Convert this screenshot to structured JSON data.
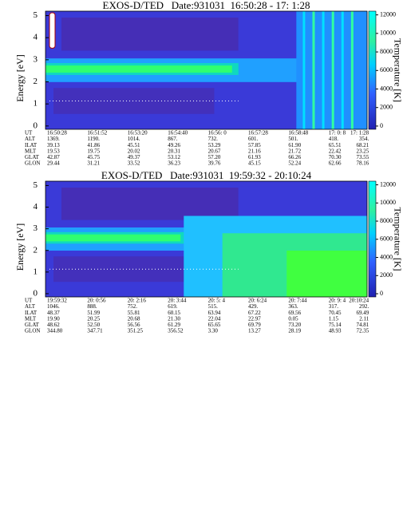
{
  "chart_data": [
    {
      "type": "contour",
      "title": "EXOS-D/TED   Date:931031  16:50:28 - 17: 1:28",
      "ylabel": "Energy [eV]",
      "ylim": [
        -0.15,
        5.2
      ],
      "yticks": [
        0,
        1,
        2,
        3,
        4,
        5
      ],
      "colorbar_label": "Temperature [K]",
      "clim": [
        -350,
        12400
      ],
      "cticks": [
        0,
        2000,
        4000,
        6000,
        8000,
        10000,
        12000
      ],
      "table": [
        {
          "name": "UT",
          "values": [
            "16:50:28",
            "16:51:52",
            "16:53:20",
            "16:54:40",
            "16:56: 0",
            "16:57:28",
            "16:58:48",
            "17: 0: 8",
            "17: 1:28"
          ]
        },
        {
          "name": "ALT",
          "values": [
            "1369.",
            "1190.",
            "1014.",
            "867.",
            "732.",
            "601.",
            "501.",
            "418.",
            "354."
          ]
        },
        {
          "name": "ILAT",
          "values": [
            "39.13",
            "41.86",
            "45.51",
            "49.26",
            "53.29",
            "57.85",
            "61.90",
            "65.51",
            "68.21"
          ]
        },
        {
          "name": "MLT",
          "values": [
            "19.53",
            "19.75",
            "20.02",
            "20.31",
            "20.67",
            "21.16",
            "21.72",
            "22.42",
            "23.25"
          ]
        },
        {
          "name": "GLAT",
          "values": [
            "42.87",
            "45.75",
            "49.37",
            "53.12",
            "57.20",
            "61.93",
            "66.26",
            "70.30",
            "73.55"
          ]
        },
        {
          "name": "GLON",
          "values": [
            "29.44",
            "31.21",
            "33.52",
            "36.23",
            "39.76",
            "45.15",
            "52.24",
            "62.66",
            "78.16"
          ]
        }
      ]
    },
    {
      "type": "contour",
      "title": "EXOS-D/TED   Date:931031  19:59:32 - 20:10:24",
      "ylabel": "Energy [eV]",
      "ylim": [
        -0.15,
        5.2
      ],
      "yticks": [
        0,
        1,
        2,
        3,
        4,
        5
      ],
      "colorbar_label": "Temperature [K]",
      "clim": [
        -350,
        12400
      ],
      "cticks": [
        0,
        2000,
        4000,
        6000,
        8000,
        10000,
        12000
      ],
      "table": [
        {
          "name": "UT",
          "values": [
            "19:59:32",
            "20: 0:56",
            "20: 2:16",
            "20: 3:44",
            "20: 5: 4",
            "20: 6:24",
            "20: 7:44",
            "20: 9: 4",
            "20:10:24"
          ]
        },
        {
          "name": "ALT",
          "values": [
            "1046.",
            "888.",
            "752.",
            "619.",
            "515.",
            "429.",
            "363.",
            "317.",
            "292."
          ]
        },
        {
          "name": "ILAT",
          "values": [
            "48.37",
            "51.99",
            "55.81",
            "60.15",
            "63.94",
            "67.22",
            "69.56",
            "70.45",
            "69.49"
          ]
        },
        {
          "name": "MLT",
          "values": [
            "19.90",
            "20.25",
            "20.68",
            "21.30",
            "22.04",
            "22.97",
            "0.05",
            "1.15",
            "2.11"
          ]
        },
        {
          "name": "GLAT",
          "values": [
            "48.62",
            "52.50",
            "56.56",
            "61.29",
            "65.65",
            "69.79",
            "73.20",
            "75.14",
            "74.81"
          ]
        },
        {
          "name": "GLON",
          "values": [
            "344.80",
            "347.71",
            "351.25",
            "356.52",
            "3.30",
            "13.27",
            "28.19",
            "48.93",
            "72.35"
          ]
        }
      ]
    }
  ]
}
